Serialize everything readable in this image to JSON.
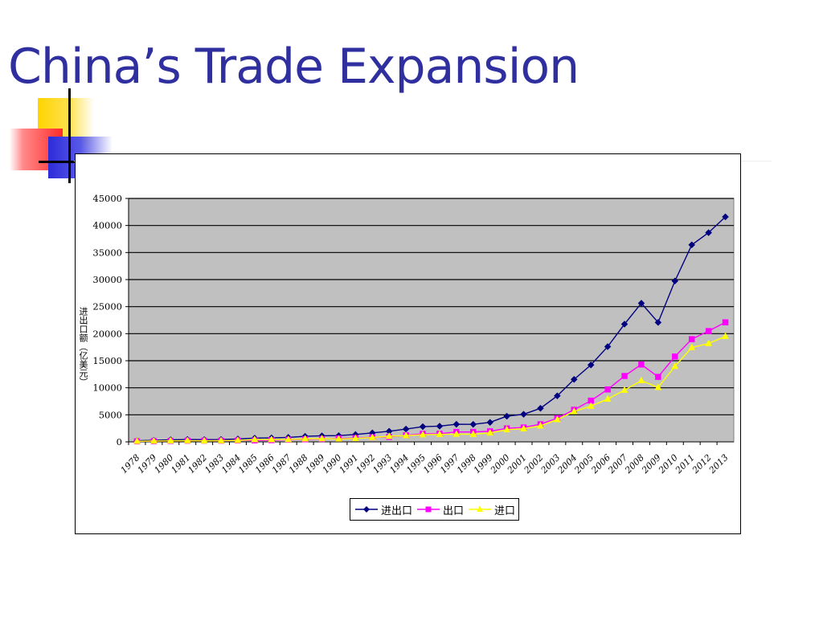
{
  "slide": {
    "title": "China’s Trade Expansion"
  },
  "colors": {
    "title": "#2f2f9f",
    "plot_background": "#c0c0c0",
    "gridline": "#000000"
  },
  "chart_data": {
    "type": "line",
    "title": "",
    "xlabel": "",
    "ylabel": "进出口额（亿美元）",
    "ylim": [
      0,
      45000
    ],
    "yticks": [
      0,
      5000,
      10000,
      15000,
      20000,
      25000,
      30000,
      35000,
      40000,
      45000
    ],
    "grid": true,
    "legend_position": "bottom",
    "categories": [
      "1978",
      "1979",
      "1980",
      "1981",
      "1982",
      "1983",
      "1984",
      "1985",
      "1986",
      "1987",
      "1988",
      "1989",
      "1990",
      "1991",
      "1992",
      "1993",
      "1994",
      "1995",
      "1996",
      "1997",
      "1998",
      "1999",
      "2000",
      "2001",
      "2002",
      "2003",
      "2004",
      "2005",
      "2006",
      "2007",
      "2008",
      "2009",
      "2010",
      "2011",
      "2012",
      "2013"
    ],
    "series": [
      {
        "name": "进出口",
        "color": "#000080",
        "marker": "diamond",
        "values": [
          206,
          293,
          381,
          440,
          416,
          436,
          535,
          696,
          738,
          827,
          1028,
          1117,
          1154,
          1357,
          1655,
          1957,
          2366,
          2809,
          2899,
          3252,
          3240,
          3606,
          4743,
          5097,
          6208,
          8510,
          11546,
          14219,
          17604,
          21765,
          25633,
          22075,
          29740,
          36419,
          38671,
          41600
        ]
      },
      {
        "name": "出口",
        "color": "#ff00ff",
        "marker": "square",
        "values": [
          98,
          137,
          181,
          220,
          223,
          222,
          261,
          274,
          309,
          394,
          475,
          525,
          621,
          719,
          849,
          917,
          1210,
          1488,
          1511,
          1828,
          1837,
          1949,
          2492,
          2661,
          3256,
          4382,
          5933,
          7620,
          9689,
          12178,
          14307,
          12016,
          15778,
          18984,
          20487,
          22100
        ]
      },
      {
        "name": "进口",
        "color": "#ffff00",
        "marker": "triangle",
        "values": [
          109,
          157,
          200,
          220,
          193,
          214,
          274,
          423,
          429,
          432,
          553,
          591,
          534,
          638,
          806,
          1040,
          1156,
          1321,
          1388,
          1424,
          1402,
          1657,
          2251,
          2436,
          2952,
          4128,
          5614,
          6600,
          7915,
          9561,
          11326,
          10059,
          13962,
          17435,
          18184,
          19500
        ]
      }
    ]
  }
}
